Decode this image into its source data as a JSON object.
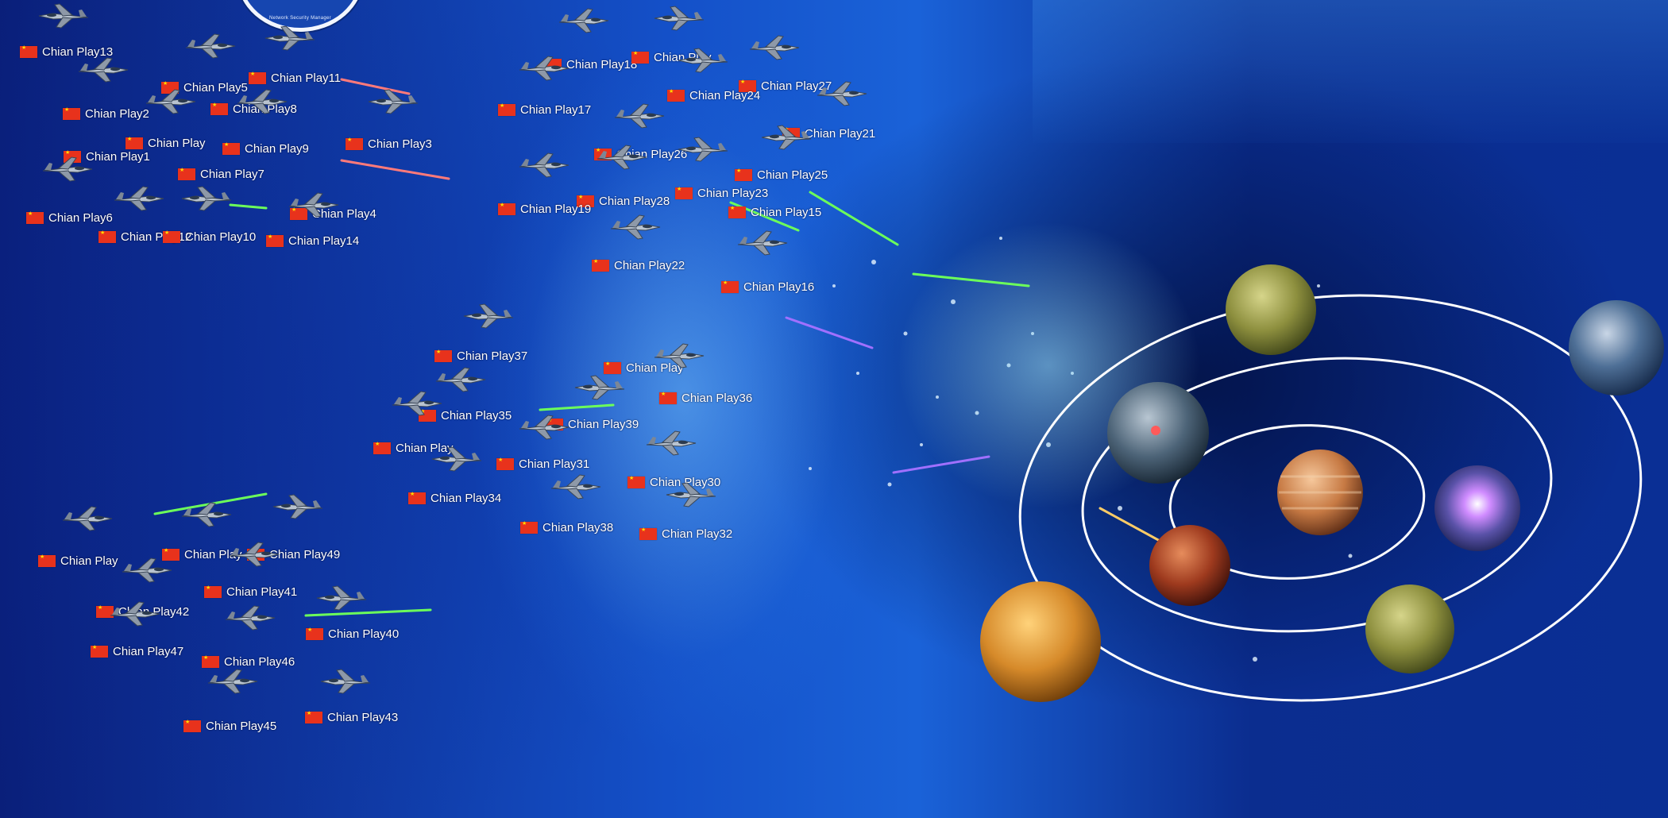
{
  "logo": {
    "text": "Network Security Manager"
  },
  "players": [
    "Chian Play13",
    "Chian Play5",
    "Chian Play11",
    "Chian Play2",
    "Chian Play8",
    "Chian Play",
    "Chian Play9",
    "Chian Play3",
    "Chian Play1",
    "Chian Play7",
    "Chian Play4",
    "Chian Play6",
    "Chian Play12",
    "Chian Play10",
    "Chian Play14",
    "Chian Play18",
    "Chian Play",
    "Chian Play27",
    "Chian Play17",
    "Chian Play24",
    "Chian Play21",
    "Chian Play26",
    "Chian Play25",
    "Chian Play23",
    "Chian Play28",
    "Chian Play19",
    "Chian Play15",
    "Chian Play22",
    "Chian Play16",
    "Chian Play37",
    "Chian Play",
    "Chian Play36",
    "Chian Play35",
    "Chian Play39",
    "Chian Play",
    "Chian Play31",
    "Chian Play30",
    "Chian Play34",
    "Chian Play38",
    "Chian Play32",
    "Chian Play",
    "Chian Play",
    "Chian Play49",
    "Chian Play41",
    "Chian Play42",
    "Chian Play40",
    "Chian Play47",
    "Chian Play46",
    "Chian Play45",
    "Chian Play43"
  ],
  "colors": {
    "flag": "#e8321c",
    "flag_star": "#ffde00",
    "orbit": "#ffffff",
    "beam_red": "#ff6a6a",
    "beam_green": "#6cff5a",
    "beam_purple": "#a070ff"
  }
}
